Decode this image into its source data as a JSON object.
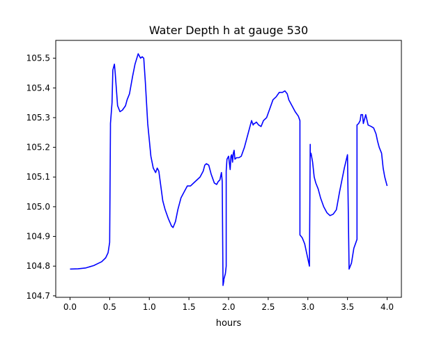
{
  "chart_data": {
    "type": "line",
    "title": "Water Depth h at gauge 530",
    "xlabel": "hours",
    "ylabel": "",
    "xlim": [
      -0.18,
      4.18
    ],
    "ylim": [
      104.695,
      105.56
    ],
    "xticks": [
      0.0,
      0.5,
      1.0,
      1.5,
      2.0,
      2.5,
      3.0,
      3.5,
      4.0
    ],
    "xtick_labels": [
      "0.0",
      "0.5",
      "1.0",
      "1.5",
      "2.0",
      "2.5",
      "3.0",
      "3.5",
      "4.0"
    ],
    "yticks": [
      104.7,
      104.8,
      104.9,
      105.0,
      105.1,
      105.2,
      105.3,
      105.4,
      105.5
    ],
    "ytick_labels": [
      "104.7",
      "104.8",
      "104.9",
      "105.0",
      "105.1",
      "105.2",
      "105.3",
      "105.4",
      "105.5"
    ],
    "grid": false,
    "legend": "none",
    "series": [
      {
        "color": "#0000ff",
        "x": [
          0.0,
          0.1,
          0.2,
          0.3,
          0.4,
          0.45,
          0.48,
          0.5,
          0.51,
          0.51,
          0.53,
          0.54,
          0.56,
          0.57,
          0.6,
          0.63,
          0.66,
          0.7,
          0.72,
          0.75,
          0.79,
          0.82,
          0.86,
          0.89,
          0.91,
          0.93,
          0.95,
          0.98,
          1.02,
          1.05,
          1.08,
          1.1,
          1.12,
          1.13,
          1.15,
          1.17,
          1.2,
          1.24,
          1.28,
          1.3,
          1.33,
          1.36,
          1.4,
          1.44,
          1.48,
          1.52,
          1.56,
          1.6,
          1.64,
          1.68,
          1.7,
          1.72,
          1.75,
          1.78,
          1.82,
          1.85,
          1.87,
          1.89,
          1.91,
          1.92,
          1.93,
          1.94,
          1.94,
          1.95,
          1.96,
          1.97,
          1.97,
          1.98,
          2.0,
          2.02,
          2.03,
          2.04,
          2.05,
          2.06,
          2.07,
          2.08,
          2.1,
          2.13,
          2.16,
          2.2,
          2.24,
          2.27,
          2.29,
          2.31,
          2.32,
          2.33,
          2.35,
          2.38,
          2.41,
          2.44,
          2.48,
          2.52,
          2.56,
          2.6,
          2.64,
          2.68,
          2.71,
          2.74,
          2.76,
          2.8,
          2.84,
          2.88,
          2.9,
          2.9,
          2.93,
          2.96,
          3.0,
          3.02,
          3.02,
          3.03,
          3.03,
          3.04,
          3.06,
          3.08,
          3.1,
          3.13,
          3.16,
          3.2,
          3.24,
          3.28,
          3.32,
          3.36,
          3.38,
          3.4,
          3.43,
          3.46,
          3.5,
          3.52,
          3.52,
          3.55,
          3.58,
          3.62,
          3.62,
          3.64,
          3.66,
          3.67,
          3.69,
          3.7,
          3.72,
          3.73,
          3.76,
          3.8,
          3.83,
          3.86,
          3.88,
          3.9,
          3.93,
          3.95,
          3.97,
          3.98,
          4.0
        ],
        "y": [
          104.79,
          104.791,
          104.794,
          104.802,
          104.815,
          104.828,
          104.845,
          104.88,
          105.27,
          105.28,
          105.35,
          105.46,
          105.48,
          105.45,
          105.34,
          105.32,
          105.325,
          105.34,
          105.36,
          105.38,
          105.44,
          105.48,
          105.515,
          105.5,
          105.505,
          105.5,
          105.42,
          105.28,
          105.17,
          105.13,
          105.115,
          105.13,
          105.12,
          105.1,
          105.06,
          105.02,
          104.99,
          104.96,
          104.935,
          104.93,
          104.95,
          104.99,
          105.03,
          105.05,
          105.07,
          105.07,
          105.08,
          105.09,
          105.1,
          105.12,
          105.14,
          105.145,
          105.14,
          105.11,
          105.08,
          105.075,
          105.085,
          105.09,
          105.115,
          105.085,
          104.735,
          104.75,
          104.755,
          104.765,
          104.775,
          104.8,
          105.12,
          105.16,
          105.17,
          105.125,
          105.17,
          105.175,
          105.15,
          105.18,
          105.19,
          105.16,
          105.165,
          105.165,
          105.17,
          105.2,
          105.24,
          105.27,
          105.29,
          105.275,
          105.28,
          105.28,
          105.285,
          105.275,
          105.27,
          105.29,
          105.3,
          105.33,
          105.36,
          105.37,
          105.385,
          105.385,
          105.39,
          105.38,
          105.36,
          105.34,
          105.32,
          105.305,
          105.29,
          104.905,
          104.895,
          104.875,
          104.825,
          104.8,
          104.805,
          105.21,
          105.17,
          105.18,
          105.15,
          105.1,
          105.08,
          105.06,
          105.03,
          105.0,
          104.98,
          104.97,
          104.975,
          104.99,
          105.02,
          105.05,
          105.09,
          105.13,
          105.175,
          104.795,
          104.79,
          104.81,
          104.86,
          104.89,
          105.275,
          105.28,
          105.29,
          105.31,
          105.31,
          105.28,
          105.3,
          105.31,
          105.275,
          105.27,
          105.265,
          105.245,
          105.22,
          105.2,
          105.18,
          105.13,
          105.1,
          105.09,
          105.07
        ]
      }
    ]
  }
}
